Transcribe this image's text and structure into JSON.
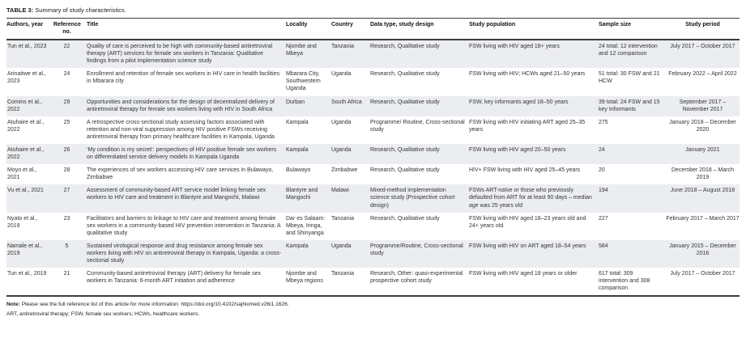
{
  "table": {
    "caption_label": "TABLE 3:",
    "caption_text": "Summary of study characteristics.",
    "columns": [
      "Authors, year",
      "Reference no.",
      "Title",
      "Locality",
      "Country",
      "Data type, study design",
      "Study population",
      "Sample size",
      "Study period"
    ],
    "rows": [
      {
        "authors": "Tun et al., 2023",
        "ref": "22",
        "title": "Quality of care is perceived to be high with community-based antiretroviral therapy (ART) services for female sex workers in Tanzania: Qualitative findings from a pilot implementation science study",
        "locality": "Njombe and Mbeya",
        "country": "Tanzania",
        "design": "Research, Qualitative study",
        "population": "FSW living with HIV aged 18+ years",
        "sample": "24 total: 12 intervention and 12 comparison",
        "period": "July 2017 – October 2017"
      },
      {
        "authors": "Arinaitwe et al., 2023",
        "ref": "24",
        "title": "Enrollment and retention of female sex workers in HIV care in health facilities in Mbarara city",
        "locality": "Mbarara City, Southwestern Uganda",
        "country": "Uganda",
        "design": "Research, Qualitative study",
        "population": "FSW living with HIV; HCWs aged 21–50 years",
        "sample": "51 total: 30 FSW and 21 HCW",
        "period": "February 2022 – April 2022"
      },
      {
        "authors": "Comins et al., 2022",
        "ref": "29",
        "title": "Opportunities and considerations for the design of decentralized delivery of antiretroviral therapy for female sex workers living with HIV in South Africa",
        "locality": "Durban",
        "country": "South Africa",
        "design": "Research, Qualitative study",
        "population": "FSW, key informants aged 18–50 years",
        "sample": "39 total: 24 FSW and 15 key Informants",
        "period": "September 2017 – November 2017"
      },
      {
        "authors": "Atuhaire et al., 2022",
        "ref": "25",
        "title": "A retrospective cross-sectional study assessing factors associated with retention and non-viral suppression among HIV positive FSWs receiving antiretroviral therapy from primary healthcare facilities in Kampala, Uganda",
        "locality": "Kampala",
        "country": "Uganda",
        "design": "Programme/ Routine, Cross-sectional study",
        "population": "FSW living with HIV initiating ART aged 25–35 years",
        "sample": "275",
        "period": "January 2018 – December 2020"
      },
      {
        "authors": "Atuhaire et al., 2022",
        "ref": "26",
        "title": "‘My condition is my secret’: perspectives of HIV positive female sex workers on differentiated service delivery models in Kampala Uganda",
        "locality": "Kampala",
        "country": "Uganda",
        "design": "Research, Qualitative study",
        "population": "FSW living with HIV aged 20–50 years",
        "sample": "24",
        "period": "January 2021"
      },
      {
        "authors": "Moyo et al., 2021",
        "ref": "28",
        "title": "The experiences of sex workers accessing HIV care services in Bulawayo, Zimbabwe",
        "locality": "Bulawayo",
        "country": "Zimbabwe",
        "design": "Research, Qualitative study",
        "population": "HIV+ FSW living with HIV aged 25–45 years",
        "sample": "20",
        "period": "December 2018 – March 2019"
      },
      {
        "authors": "Vu et al., 2021",
        "ref": "27",
        "title": "Assessment of community-based ART service model linking female sex workers to HIV care and treatment in Blantyre and Mangochi, Malawi",
        "locality": "Blantyre and Mangochi",
        "country": "Malawi",
        "design": "Mixed-method implementation science study (Prospective cohort design)",
        "population": "FSWs ART-naïve or those who previously defaulted from ART for at least 90 days – median age was 25 years old",
        "sample": "194",
        "period": "June 2018 – August 2018"
      },
      {
        "authors": "Nyato et al., 2019",
        "ref": "23",
        "title": "Facilitators and barriers to linkage to HIV care and treatment among female sex workers in a community-based HIV prevention intervention in Tanzania: A qualitative study",
        "locality": "Dar es Salaam: Mbeya, Iringa, and Shinyanga",
        "country": "Tanzania",
        "design": "Research, Qualitative study",
        "population": "FSW living with HIV aged 18–23 years old and 24+ years old",
        "sample": "227",
        "period": "February 2017 – March 2017"
      },
      {
        "authors": "Namale et al., 2019",
        "ref": "5",
        "title": "Sustained virological response and drug resistance among female sex workers living with HIV on antiretroviral therapy in Kampala, Uganda: a cross-sectional study",
        "locality": "Kampala",
        "country": "Uganda",
        "design": "Programme/Routine, Cross-sectional study",
        "population": "FSW living with HIV on ART aged 18–54 years",
        "sample": "584",
        "period": "January 2015 – December 2016"
      },
      {
        "authors": "Tun et al., 2019",
        "ref": "21",
        "title": "Community-based antiretroviral therapy (ART) delivery for female sex workers in Tanzania: 6-month ART initiation and adherence",
        "locality": "Njombe and Mbeya regions",
        "country": "Tanzania",
        "design": "Research, Other: quasi-experimental prospective cohort study",
        "population": "FSW living with HIV aged 18 years or older",
        "sample": "617 total: 309 intervention and 308 comparison",
        "period": "July 2017 – October 2017"
      }
    ],
    "notes": {
      "note_label": "Note:",
      "note_text": "Please see the full reference list of this article for more information: https://doi.org/10.4102/sajhivmed.v26i1.1626.",
      "abbreviations": "ART, antiretroviral therapy; FSW, female sex workers; HCWs, healthcare workers."
    }
  }
}
